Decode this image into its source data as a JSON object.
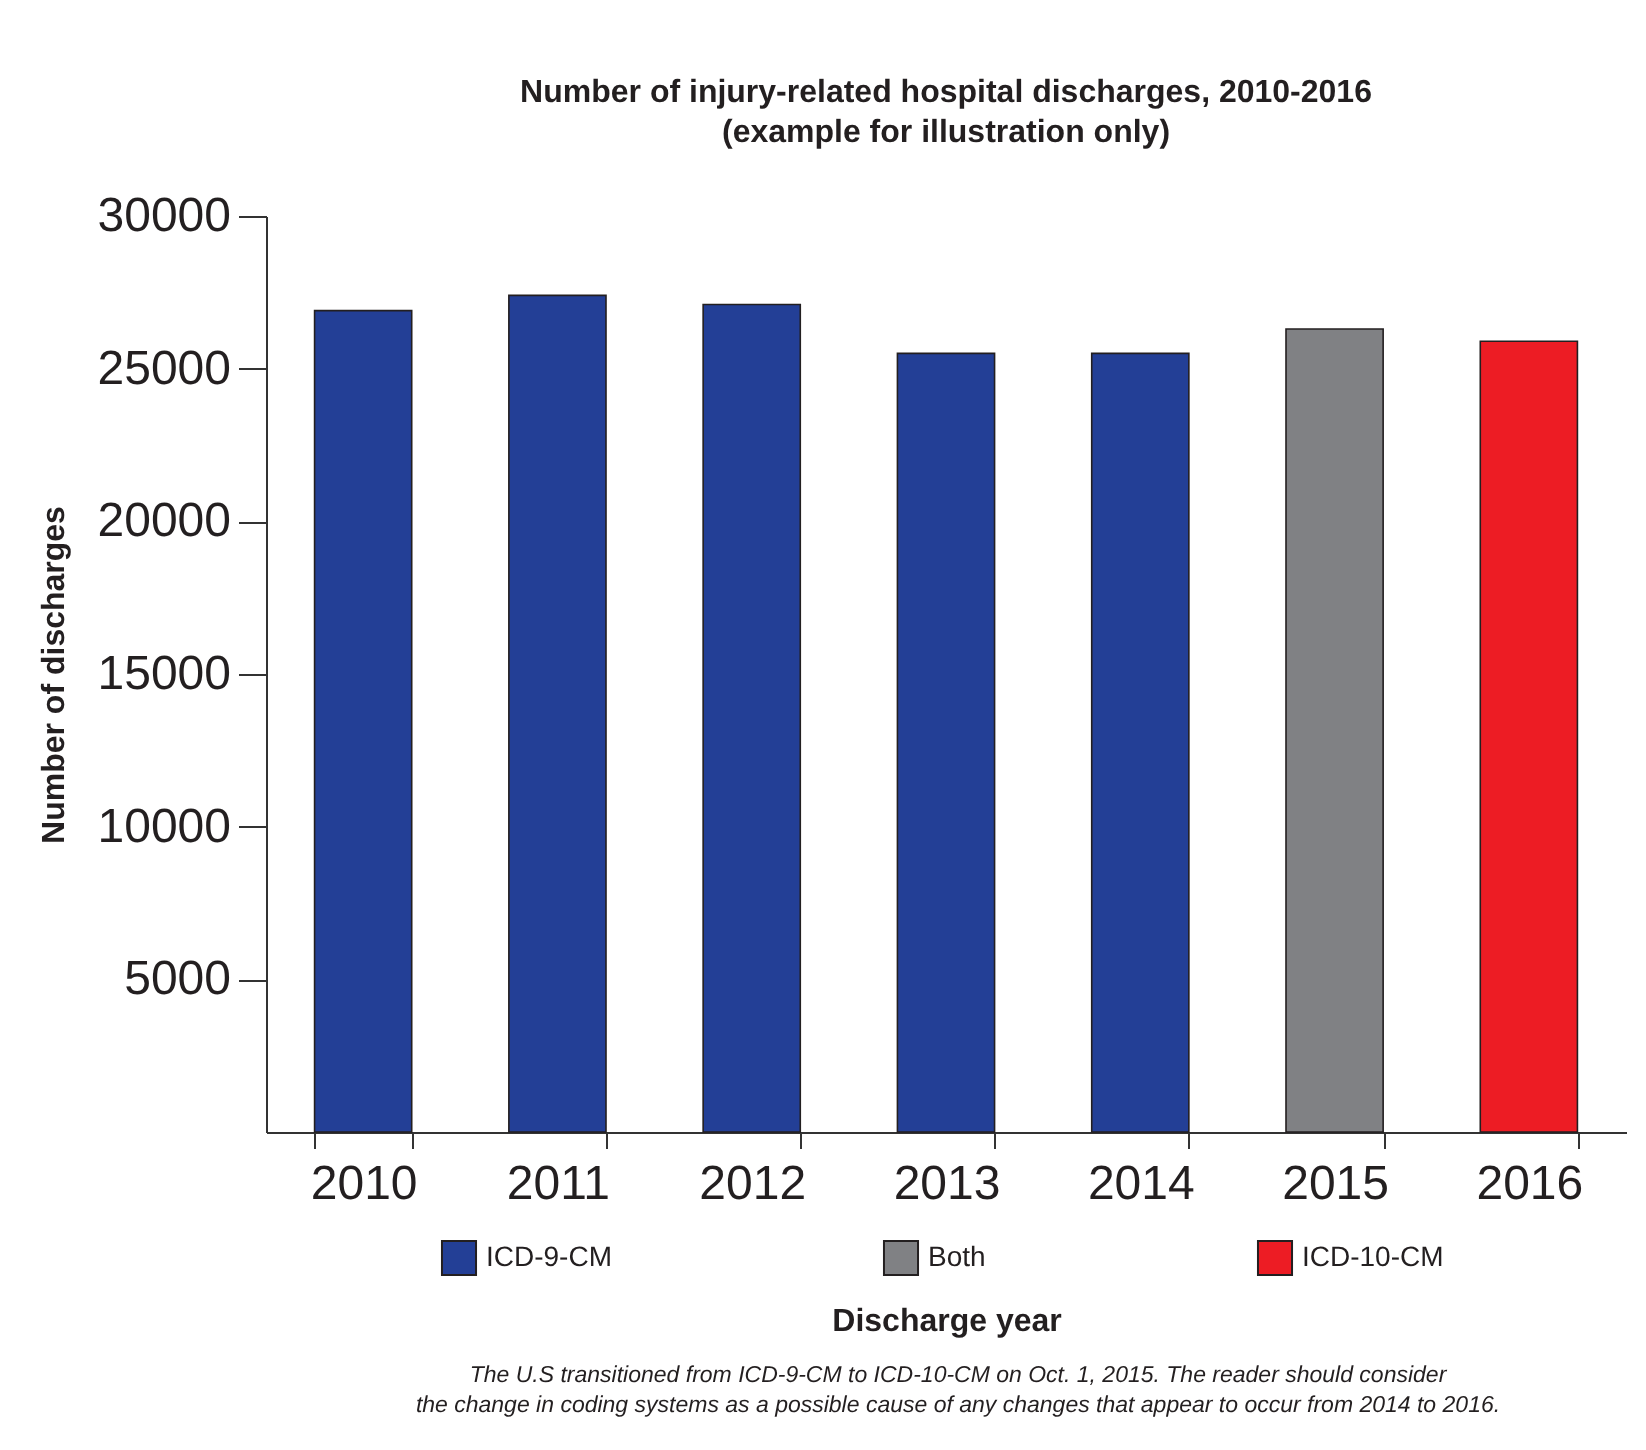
{
  "chart_data": {
    "type": "bar",
    "title": "Number of injury-related hospital discharges, 2010-2016",
    "subtitle": "(example for illustration only)",
    "xlabel": "Discharge year",
    "ylabel": "Number of discharges",
    "categories": [
      "2010",
      "2011",
      "2012",
      "2013",
      "2014",
      "2015",
      "2016"
    ],
    "series": [
      {
        "name": "ICD-9-CM",
        "color": "#233f96",
        "values": [
          26900,
          27400,
          27100,
          25500,
          25500,
          null,
          null
        ]
      },
      {
        "name": "Both",
        "color": "#808184",
        "values": [
          null,
          null,
          null,
          null,
          null,
          26300,
          null
        ]
      },
      {
        "name": "ICD-10-CM",
        "color": "#ed1c24",
        "values": [
          null,
          null,
          null,
          null,
          null,
          null,
          25900
        ]
      }
    ],
    "ylim": [
      0,
      30000
    ],
    "yticks": [
      5000,
      10000,
      15000,
      20000,
      25000,
      30000
    ],
    "grid": false,
    "legend": "bottom",
    "annotations": [
      "The U.S transitioned from ICD-9-CM to ICD-10-CM on Oct. 1, 2015.  The reader should consider\nthe change in coding systems as a possible cause of any changes that appear to occur from 2014 to 2016."
    ]
  }
}
